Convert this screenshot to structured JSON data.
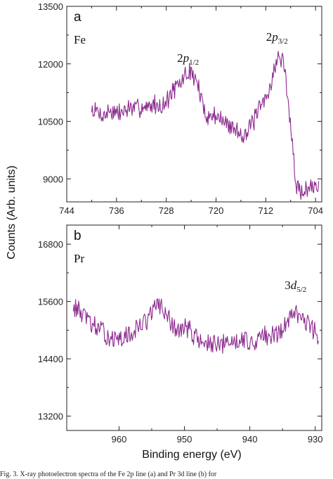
{
  "figure": {
    "ylabel": "Counts (Arb. units)",
    "xlabel": "Binding energy (eV)",
    "caption": "Fig. 3. X-ray photoelectron spectra of the Fe 2p line (a) and Pr 3d line (b) for",
    "line_color": "#8B2A8E"
  },
  "chart_data": [
    {
      "type": "line",
      "panel_label": "a",
      "element_label": "Fe",
      "xlim": [
        744,
        703
      ],
      "ylim": [
        8400,
        13500
      ],
      "x_reversed": true,
      "x_ticks": [
        744,
        736,
        728,
        720,
        712,
        704
      ],
      "y_ticks": [
        9000,
        10500,
        12000,
        13500
      ],
      "grid": false,
      "annotations": [
        {
          "main": "2",
          "italic": "p",
          "sub": "1/2",
          "x": 724.5,
          "y": 12050
        },
        {
          "main": "2",
          "italic": "p",
          "sub": "3/2",
          "x": 710.2,
          "y": 12600
        }
      ],
      "series": [
        {
          "color": "#8B2A8E",
          "x": [
            740,
            739,
            738,
            737,
            736,
            735,
            734,
            733,
            732,
            731,
            730,
            729,
            728,
            727,
            726,
            725,
            724,
            723,
            722,
            721,
            720,
            719,
            718,
            717,
            716,
            715,
            714,
            713,
            712,
            711,
            710,
            709,
            708,
            707,
            706,
            705,
            704,
            703.5
          ],
          "y": [
            10800,
            10750,
            10650,
            10800,
            10700,
            10750,
            10850,
            10800,
            10900,
            10850,
            10950,
            10900,
            11000,
            11300,
            11400,
            11700,
            11800,
            11500,
            10800,
            10600,
            10700,
            10500,
            10400,
            10300,
            10200,
            10200,
            10500,
            10800,
            11100,
            11600,
            12200,
            12000,
            10300,
            8700,
            8700,
            8750,
            8800,
            8850
          ]
        }
      ]
    },
    {
      "type": "line",
      "panel_label": "b",
      "element_label": "Pr",
      "xlim": [
        968,
        929
      ],
      "ylim": [
        12900,
        17200
      ],
      "x_reversed": true,
      "x_ticks": [
        960,
        950,
        940,
        930
      ],
      "y_ticks": [
        13200,
        14400,
        15600,
        16800
      ],
      "grid": false,
      "annotations": [
        {
          "main": "3",
          "italic": "d",
          "sub": "5/2",
          "x": 933.0,
          "y": 15860
        }
      ],
      "series": [
        {
          "color": "#8B2A8E",
          "x": [
            967,
            966,
            965,
            964,
            963,
            962,
            961,
            960,
            959,
            958,
            957,
            956,
            955,
            954,
            953,
            952,
            951,
            950,
            949,
            948,
            947,
            946,
            945,
            944,
            943,
            942,
            941,
            940,
            939,
            938,
            937,
            936,
            935,
            934,
            933,
            932,
            931,
            930,
            929.5
          ],
          "y": [
            15500,
            15400,
            15250,
            15100,
            15000,
            14900,
            14850,
            14750,
            14850,
            14950,
            15050,
            15200,
            15350,
            15550,
            15400,
            15100,
            15000,
            15050,
            15000,
            14800,
            14750,
            14700,
            14650,
            14700,
            14750,
            14800,
            14850,
            14700,
            14800,
            14900,
            14800,
            14950,
            15000,
            15250,
            15400,
            15350,
            15100,
            14950,
            14900
          ]
        }
      ]
    }
  ]
}
